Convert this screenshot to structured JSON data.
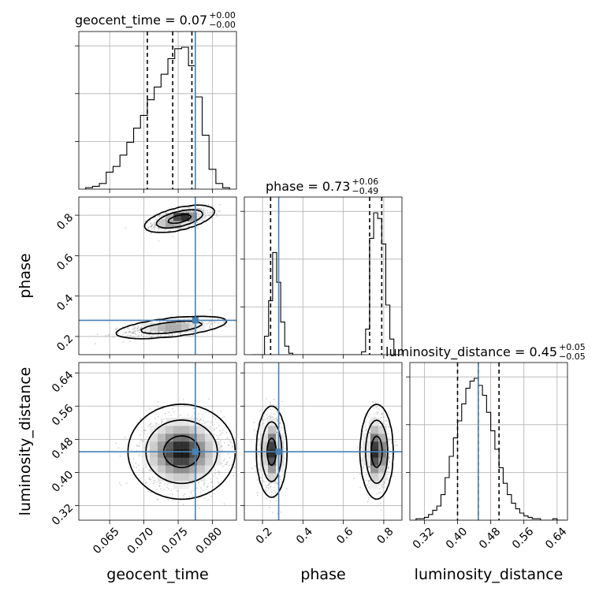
{
  "chart_data": {
    "type": "corner",
    "parameters": [
      "geocent_time",
      "phase",
      "luminosity_distance"
    ],
    "truth": {
      "geocent_time": 0.0775,
      "phase": 0.28,
      "luminosity_distance": 0.45
    },
    "colors": {
      "truth": "#4682b4",
      "lines": "#000000",
      "grid": "#b0b0b0"
    },
    "axes": {
      "geocent_time": {
        "range": [
          0.0605,
          0.0835
        ],
        "ticks": [
          0.065,
          0.07,
          0.075,
          0.08
        ],
        "tick_labels": [
          "0.065",
          "0.070",
          "0.075",
          "0.080"
        ]
      },
      "phase": {
        "range": [
          0.11,
          0.89
        ],
        "ticks": [
          0.2,
          0.4,
          0.6,
          0.8
        ],
        "tick_labels": [
          "0.2",
          "0.4",
          "0.6",
          "0.8"
        ]
      },
      "luminosity_distance": {
        "range": [
          0.285,
          0.665
        ],
        "ticks": [
          0.32,
          0.4,
          0.48,
          0.56,
          0.64
        ],
        "tick_labels": [
          "0.32",
          "0.40",
          "0.48",
          "0.56",
          "0.64"
        ]
      }
    },
    "titles": [
      {
        "label": "geocent_time = 0.07",
        "sup": "+0.00",
        "sub": "−0.00"
      },
      {
        "label": "phase = 0.73",
        "sup": "+0.06",
        "sub": "−0.49"
      },
      {
        "label": "luminosity_distance = 0.45",
        "sup": "+0.05",
        "sub": "−0.05"
      }
    ],
    "diagonal": [
      {
        "parameter": "geocent_time",
        "bin_edges": [
          0.0615,
          0.0625,
          0.0635,
          0.0645,
          0.0655,
          0.0665,
          0.0675,
          0.0685,
          0.0695,
          0.0705,
          0.0715,
          0.0725,
          0.0735,
          0.0745,
          0.0755,
          0.0765,
          0.0775,
          0.0785,
          0.0795,
          0.0805,
          0.0815,
          0.0825
        ],
        "counts": [
          0.01,
          0.02,
          0.04,
          0.12,
          0.16,
          0.24,
          0.33,
          0.43,
          0.52,
          0.63,
          0.72,
          0.81,
          0.92,
          0.99,
          1.0,
          0.87,
          0.65,
          0.38,
          0.14,
          0.04,
          0.01
        ],
        "quantiles": [
          0.0705,
          0.0742,
          0.077
        ]
      },
      {
        "parameter": "phase",
        "bin_edges": [
          0.15,
          0.17,
          0.19,
          0.21,
          0.23,
          0.25,
          0.27,
          0.29,
          0.31,
          0.33,
          0.35,
          0.37,
          0.39,
          0.41,
          0.43,
          0.45,
          0.47,
          0.49,
          0.51,
          0.53,
          0.55,
          0.57,
          0.59,
          0.61,
          0.63,
          0.65,
          0.67,
          0.69,
          0.71,
          0.73,
          0.75,
          0.77,
          0.79,
          0.81,
          0.83,
          0.85
        ],
        "counts": [
          0.0,
          0.0,
          0.0,
          0.13,
          0.38,
          0.72,
          0.51,
          0.23,
          0.06,
          0.01,
          0.0,
          0.0,
          0.0,
          0.0,
          0.0,
          0.0,
          0.0,
          0.0,
          0.0,
          0.0,
          0.0,
          0.0,
          0.0,
          0.0,
          0.0,
          0.0,
          0.0,
          0.02,
          0.18,
          0.82,
          1.0,
          0.96,
          0.78,
          0.35,
          0.11
        ],
        "quantiles": [
          0.24,
          0.73,
          0.79
        ]
      },
      {
        "parameter": "luminosity_distance",
        "bin_edges": [
          0.29,
          0.3,
          0.31,
          0.32,
          0.33,
          0.34,
          0.35,
          0.36,
          0.37,
          0.38,
          0.39,
          0.4,
          0.41,
          0.42,
          0.43,
          0.44,
          0.45,
          0.46,
          0.47,
          0.48,
          0.49,
          0.5,
          0.51,
          0.52,
          0.53,
          0.54,
          0.55,
          0.56,
          0.57,
          0.58,
          0.59,
          0.6,
          0.61,
          0.62,
          0.63,
          0.64,
          0.65,
          0.66
        ],
        "counts": [
          0.0,
          0.01,
          0.01,
          0.02,
          0.04,
          0.07,
          0.1,
          0.18,
          0.3,
          0.45,
          0.58,
          0.7,
          0.82,
          0.93,
          0.98,
          1.0,
          0.95,
          0.88,
          0.76,
          0.63,
          0.5,
          0.37,
          0.26,
          0.18,
          0.12,
          0.08,
          0.05,
          0.03,
          0.02,
          0.01,
          0.01,
          0.0,
          0.0,
          0.0,
          0.01,
          0.0,
          0.0
        ],
        "quantiles": [
          0.4,
          0.45,
          0.5
        ]
      }
    ],
    "joint": [
      {
        "x": "geocent_time",
        "y": "phase",
        "modes": [
          {
            "cx": 0.0752,
            "cy": 0.782,
            "sx": 0.0017,
            "sy": 0.022,
            "rho": 0.55,
            "weight": 0.6
          },
          {
            "cx": 0.074,
            "cy": 0.245,
            "sx": 0.003,
            "sy": 0.02,
            "rho": 0.55,
            "weight": 0.4
          }
        ]
      },
      {
        "x": "geocent_time",
        "y": "luminosity_distance",
        "modes": [
          {
            "cx": 0.0755,
            "cy": 0.45,
            "sx": 0.0026,
            "sy": 0.038,
            "rho": 0.0,
            "weight": 1.0
          }
        ]
      },
      {
        "x": "phase",
        "y": "luminosity_distance",
        "modes": [
          {
            "cx": 0.245,
            "cy": 0.45,
            "sx": 0.025,
            "sy": 0.037,
            "rho": 0.0,
            "weight": 0.45
          },
          {
            "cx": 0.765,
            "cy": 0.45,
            "sx": 0.027,
            "sy": 0.038,
            "rho": 0.0,
            "weight": 0.55
          }
        ]
      }
    ],
    "contour_levels": [
      0.393,
      0.865,
      0.989
    ]
  }
}
